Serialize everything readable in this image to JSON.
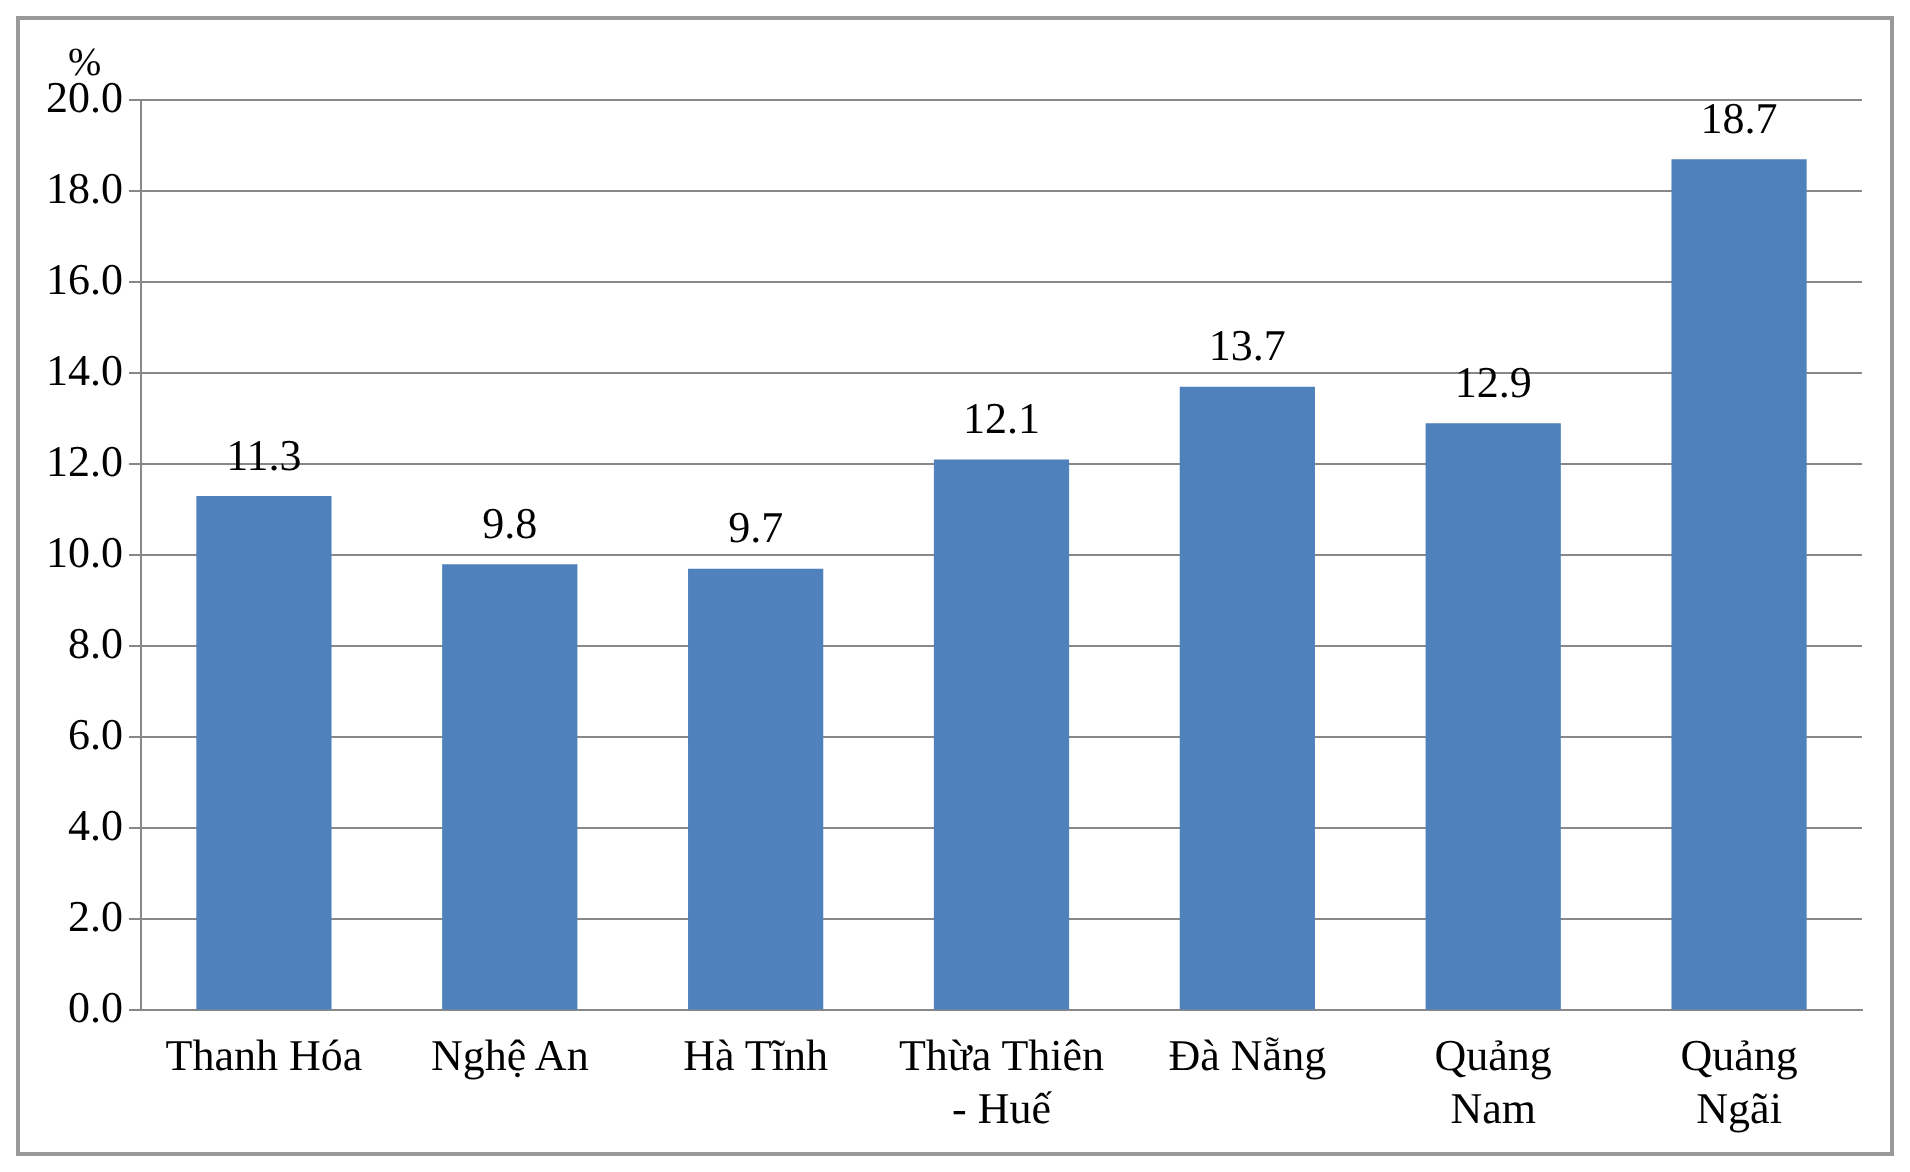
{
  "chart_data": {
    "type": "bar",
    "ylabel": "%",
    "categories": [
      "Thanh Hóa",
      "Nghệ An",
      "Hà Tĩnh",
      "Thừa Thiên - Huế",
      "Đà Nẵng",
      "Quảng Nam",
      "Quảng Ngãi"
    ],
    "values": [
      11.3,
      9.8,
      9.7,
      12.1,
      13.7,
      12.9,
      18.7
    ],
    "color": "#4f81bd",
    "ylim": [
      0,
      20
    ],
    "yticks": [
      {
        "value": 0,
        "label": "0.0"
      },
      {
        "value": 2,
        "label": "2.0"
      },
      {
        "value": 4,
        "label": "4.0"
      },
      {
        "value": 6,
        "label": "6.0"
      },
      {
        "value": 8,
        "label": "8.0"
      },
      {
        "value": 10,
        "label": "10.0"
      },
      {
        "value": 12,
        "label": "12.0"
      },
      {
        "value": 14,
        "label": "14.0"
      },
      {
        "value": 16,
        "label": "16.0"
      },
      {
        "value": 18,
        "label": "18.0"
      },
      {
        "value": 20,
        "label": "20.0"
      }
    ],
    "grid": "y",
    "data_labels": true,
    "legend": false
  }
}
